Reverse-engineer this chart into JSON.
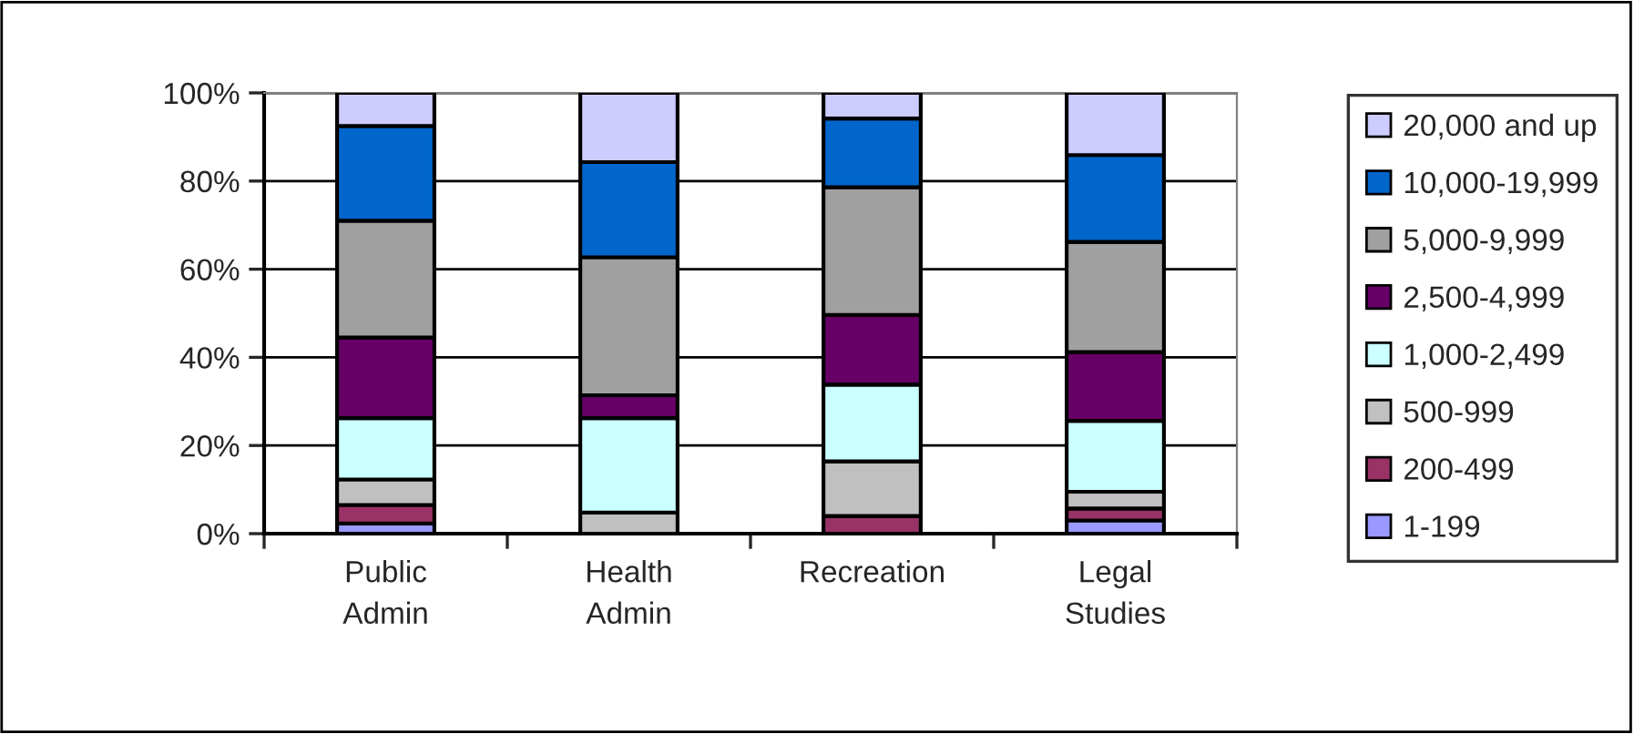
{
  "chart_data": {
    "type": "bar",
    "stacked": true,
    "categories": [
      "Public\nAdmin",
      "Health\nAdmin",
      "Recreation",
      "Legal\nStudies"
    ],
    "series": [
      {
        "name": "1-199",
        "color": "#9999ff",
        "values": [
          2.3,
          0,
          null,
          3
        ]
      },
      {
        "name": "200-499",
        "color": "#993366",
        "values": [
          4.2,
          0,
          4,
          2.7
        ]
      },
      {
        "name": "500-999",
        "color": "#c0c0c0",
        "values": [
          5.8,
          4.8,
          12.4,
          3.8
        ]
      },
      {
        "name": "1,000-2,499",
        "color": "#ccffff",
        "values": [
          13.9,
          21.4,
          17.4,
          16.1
        ]
      },
      {
        "name": "2,500-4,999",
        "color": "#660066",
        "values": [
          18.3,
          5.2,
          15.8,
          15.6
        ]
      },
      {
        "name": "5,000-9,999",
        "color": "#a0a0a0",
        "values": [
          26.5,
          31.3,
          29,
          25
        ]
      },
      {
        "name": "10,000-19,999",
        "color": "#0066cc",
        "values": [
          21.5,
          21.6,
          15.6,
          19.7
        ]
      },
      {
        "name": "20,000 and up",
        "color": "#ccccff",
        "values": [
          7.5,
          15.7,
          5.8,
          14.1
        ]
      }
    ],
    "ylim": [
      0,
      100
    ],
    "yticks": [
      {
        "value": 0,
        "label": "0%"
      },
      {
        "value": 20,
        "label": "20%"
      },
      {
        "value": 40,
        "label": "40%"
      },
      {
        "value": 60,
        "label": "60%"
      },
      {
        "value": 80,
        "label": "80%"
      },
      {
        "value": 100,
        "label": "100%"
      }
    ],
    "grid": "y",
    "legend": "right"
  }
}
